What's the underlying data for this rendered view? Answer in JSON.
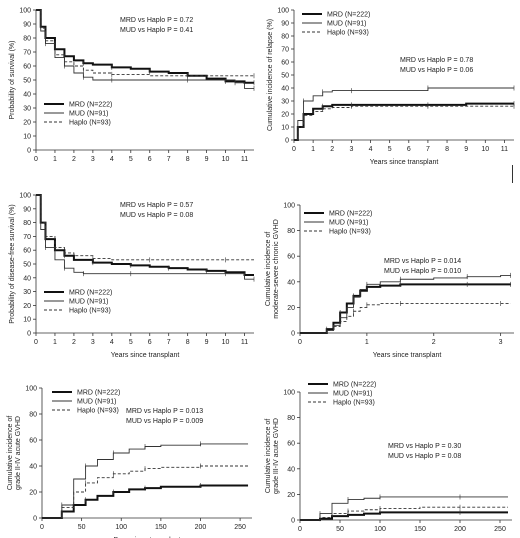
{
  "chart_data": [
    {
      "type": "line",
      "ylabel": "Probability of survival (%)",
      "xlabel": "",
      "xlim": [
        0,
        11.5
      ],
      "ylim": [
        0,
        100
      ],
      "xticks": [
        0,
        1,
        2,
        3,
        4,
        5,
        6,
        7,
        8,
        9,
        10,
        11
      ],
      "yticks": [
        0,
        10,
        20,
        30,
        40,
        50,
        60,
        70,
        80,
        90,
        100
      ],
      "annotations": [
        "MRD vs Haplo P = 0.72",
        "MUD vs Haplo P = 0.41"
      ],
      "legend_position": "bottom-left",
      "series": [
        {
          "name": "MRD (N=222)",
          "style": "thick",
          "x": [
            0,
            0.25,
            0.5,
            1,
            1.5,
            2,
            2.5,
            3,
            4,
            5,
            6,
            7,
            8,
            9,
            10,
            11,
            11.5
          ],
          "y": [
            100,
            88,
            80,
            72,
            67,
            64,
            62,
            61,
            59,
            58,
            56,
            55,
            53,
            51,
            49,
            48,
            48
          ]
        },
        {
          "name": "MUD (N=91)",
          "style": "thin",
          "x": [
            0,
            0.25,
            0.5,
            1,
            1.5,
            2,
            2.5,
            3,
            4,
            6,
            8,
            10,
            10.5,
            11,
            11.5
          ],
          "y": [
            100,
            85,
            76,
            66,
            60,
            55,
            52,
            50,
            50,
            50,
            50,
            50,
            48,
            44,
            44
          ]
        },
        {
          "name": "Haplo (N=93)",
          "style": "dashed",
          "x": [
            0,
            0.25,
            0.5,
            1,
            1.5,
            2,
            2.5,
            3,
            4,
            6,
            8,
            10,
            11.5
          ],
          "y": [
            100,
            87,
            78,
            68,
            63,
            60,
            57,
            55,
            54,
            53,
            53,
            53,
            53
          ]
        }
      ]
    },
    {
      "type": "line",
      "ylabel": "Cumulative incidence of relapse (%)",
      "xlabel": "Years since transplant",
      "xlim": [
        0,
        11.5
      ],
      "ylim": [
        0,
        100
      ],
      "xticks": [
        0,
        1,
        2,
        3,
        4,
        5,
        6,
        7,
        8,
        9,
        10,
        11
      ],
      "yticks": [
        0,
        10,
        20,
        30,
        40,
        50,
        60,
        70,
        80,
        90,
        100
      ],
      "annotations": [
        "MRD vs Haplo P = 0.78",
        "MUD vs Haplo P = 0.06"
      ],
      "legend_position": "top-left",
      "series": [
        {
          "name": "MRD (N=222)",
          "style": "thick",
          "x": [
            0,
            0.2,
            0.5,
            1,
            1.5,
            2,
            3,
            5,
            7,
            9,
            11.5
          ],
          "y": [
            0,
            10,
            20,
            24,
            26,
            27,
            27,
            27,
            27,
            28,
            28
          ]
        },
        {
          "name": "MUD (N=91)",
          "style": "thin",
          "x": [
            0,
            0.2,
            0.5,
            1,
            1.5,
            2,
            3,
            5,
            7,
            9,
            11.5
          ],
          "y": [
            0,
            15,
            30,
            34,
            37,
            38,
            38,
            38,
            40,
            40,
            40
          ]
        },
        {
          "name": "Haplo (N=93)",
          "style": "dashed",
          "x": [
            0,
            0.2,
            0.5,
            1,
            1.5,
            2,
            3,
            5,
            7,
            9,
            11.5
          ],
          "y": [
            0,
            10,
            19,
            22,
            24,
            25,
            26,
            26,
            26,
            26,
            26
          ]
        }
      ]
    },
    {
      "type": "line",
      "ylabel": "Probability of disease-free survival (%)",
      "xlabel": "Years since transplant",
      "xlim": [
        0,
        11.5
      ],
      "ylim": [
        0,
        100
      ],
      "xticks": [
        0,
        1,
        2,
        3,
        4,
        5,
        6,
        7,
        8,
        9,
        10,
        11
      ],
      "yticks": [
        0,
        10,
        20,
        30,
        40,
        50,
        60,
        70,
        80,
        90,
        100
      ],
      "annotations": [
        "MRD vs Haplo P = 0.57",
        "MUD vs Haplo P = 0.08"
      ],
      "legend_position": "bottom-left",
      "series": [
        {
          "name": "MRD (N=222)",
          "style": "thick",
          "x": [
            0,
            0.25,
            0.5,
            1,
            1.5,
            2,
            3,
            4,
            5,
            6,
            7,
            8,
            9,
            10,
            11,
            11.5
          ],
          "y": [
            100,
            80,
            68,
            60,
            56,
            53,
            51,
            50,
            49,
            48,
            47,
            46,
            45,
            44,
            42,
            42
          ]
        },
        {
          "name": "MUD (N=91)",
          "style": "thin",
          "x": [
            0,
            0.25,
            0.5,
            1,
            1.5,
            2,
            2.5,
            3,
            5,
            8,
            10,
            11,
            11.5
          ],
          "y": [
            100,
            75,
            62,
            53,
            47,
            44,
            43,
            43,
            43,
            43,
            43,
            39,
            39
          ]
        },
        {
          "name": "Haplo (N=93)",
          "style": "dashed",
          "x": [
            0,
            0.25,
            0.5,
            1,
            1.5,
            2,
            3,
            4,
            6,
            8,
            10,
            11.5
          ],
          "y": [
            100,
            80,
            70,
            62,
            58,
            56,
            54,
            53,
            53,
            53,
            53,
            53
          ]
        }
      ]
    },
    {
      "type": "line",
      "ylabel": "Cumulative incidence of moderate-severe chronic GVHD (%)",
      "ylabel_lines": [
        "Cumulative incidence of",
        "moderate-severe chronic GVHD"
      ],
      "xlabel": "Years since transplant",
      "xlim": [
        0,
        3.2
      ],
      "ylim": [
        0,
        100
      ],
      "xticks": [
        0,
        1,
        2,
        3
      ],
      "yticks": [
        0,
        20,
        40,
        60,
        80,
        100
      ],
      "annotations": [
        "MRD vs Haplo P = 0.014",
        "MUD vs Haplo P = 0.010"
      ],
      "legend_position": "top-left",
      "series": [
        {
          "name": "MRD (N=222)",
          "style": "thick",
          "x": [
            0,
            0.3,
            0.4,
            0.5,
            0.6,
            0.7,
            0.8,
            0.9,
            1,
            1.2,
            1.5,
            2,
            2.5,
            3,
            3.15
          ],
          "y": [
            0,
            0,
            3,
            8,
            16,
            23,
            29,
            33,
            36,
            37,
            38,
            38,
            38,
            38,
            38
          ]
        },
        {
          "name": "MUD (N=91)",
          "style": "thin",
          "x": [
            0,
            0.3,
            0.4,
            0.5,
            0.6,
            0.7,
            0.8,
            0.9,
            1,
            1.2,
            1.5,
            2,
            2.5,
            3,
            3.15
          ],
          "y": [
            0,
            0,
            2,
            6,
            12,
            20,
            28,
            34,
            38,
            40,
            42,
            43,
            44,
            45,
            45
          ]
        },
        {
          "name": "Haplo (N=93)",
          "style": "dashed",
          "x": [
            0,
            0.3,
            0.4,
            0.5,
            0.6,
            0.7,
            0.8,
            0.9,
            1,
            1.2,
            1.5,
            2,
            3,
            3.15
          ],
          "y": [
            0,
            0,
            2,
            5,
            9,
            13,
            17,
            20,
            22,
            23,
            23,
            23,
            23,
            23
          ]
        }
      ]
    },
    {
      "type": "line",
      "ylabel": "Cumulative incidence of grade II-IV acute GVHD (%)",
      "ylabel_lines": [
        "Cumulative incidence of",
        "grade II-IV acute GVHD"
      ],
      "xlabel": "Days since transplant",
      "xlim": [
        0,
        265
      ],
      "ylim": [
        0,
        100
      ],
      "xticks": [
        0,
        50,
        100,
        150,
        200,
        250
      ],
      "yticks": [
        0,
        20,
        40,
        60,
        80,
        100
      ],
      "annotations": [
        "MRD vs Haplo P = 0.013",
        "MUD vs Haplo P = 0.009"
      ],
      "legend_position": "top-left",
      "series": [
        {
          "name": "MRD (N=222)",
          "style": "thick",
          "x": [
            0,
            15,
            25,
            40,
            55,
            70,
            90,
            110,
            130,
            150,
            200,
            260
          ],
          "y": [
            0,
            0,
            5,
            10,
            14,
            17,
            20,
            22,
            23,
            24,
            25,
            25
          ]
        },
        {
          "name": "MUD (N=91)",
          "style": "thin",
          "x": [
            0,
            15,
            25,
            40,
            55,
            70,
            90,
            110,
            130,
            150,
            200,
            260
          ],
          "y": [
            0,
            0,
            10,
            30,
            40,
            45,
            50,
            53,
            55,
            56,
            57,
            57
          ]
        },
        {
          "name": "Haplo (N=93)",
          "style": "dashed",
          "x": [
            0,
            15,
            25,
            40,
            55,
            70,
            90,
            110,
            130,
            150,
            200,
            260
          ],
          "y": [
            0,
            0,
            8,
            20,
            27,
            31,
            34,
            36,
            38,
            39,
            40,
            40
          ]
        }
      ]
    },
    {
      "type": "line",
      "ylabel": "Cumulative incidence of grade III-IV acute GVHD (%)",
      "ylabel_lines": [
        "Cumulative incidence of",
        "grade III-IV acute GVHD"
      ],
      "xlabel": "Days since transplant",
      "xlim": [
        0,
        265
      ],
      "ylim": [
        0,
        100
      ],
      "xticks": [
        0,
        50,
        100,
        150,
        200,
        250
      ],
      "yticks": [
        0,
        20,
        40,
        60,
        80,
        100
      ],
      "annotations": [
        "MRD vs Haplo P = 0.30",
        "MUD vs Haplo P = 0.08"
      ],
      "legend_position": "top-left",
      "series": [
        {
          "name": "MRD (N=222)",
          "style": "thick",
          "x": [
            0,
            15,
            25,
            40,
            60,
            80,
            100,
            150,
            200,
            260
          ],
          "y": [
            0,
            0,
            1,
            3,
            4,
            5,
            6,
            6,
            6,
            6
          ]
        },
        {
          "name": "MUD (N=91)",
          "style": "thin",
          "x": [
            0,
            15,
            25,
            40,
            60,
            80,
            100,
            150,
            200,
            260
          ],
          "y": [
            0,
            0,
            5,
            13,
            16,
            17,
            18,
            18,
            18,
            18
          ]
        },
        {
          "name": "Haplo (N=93)",
          "style": "dashed",
          "x": [
            0,
            15,
            25,
            40,
            60,
            80,
            100,
            150,
            200,
            260
          ],
          "y": [
            0,
            0,
            2,
            5,
            7,
            8,
            9,
            10,
            10,
            10
          ]
        }
      ]
    }
  ]
}
